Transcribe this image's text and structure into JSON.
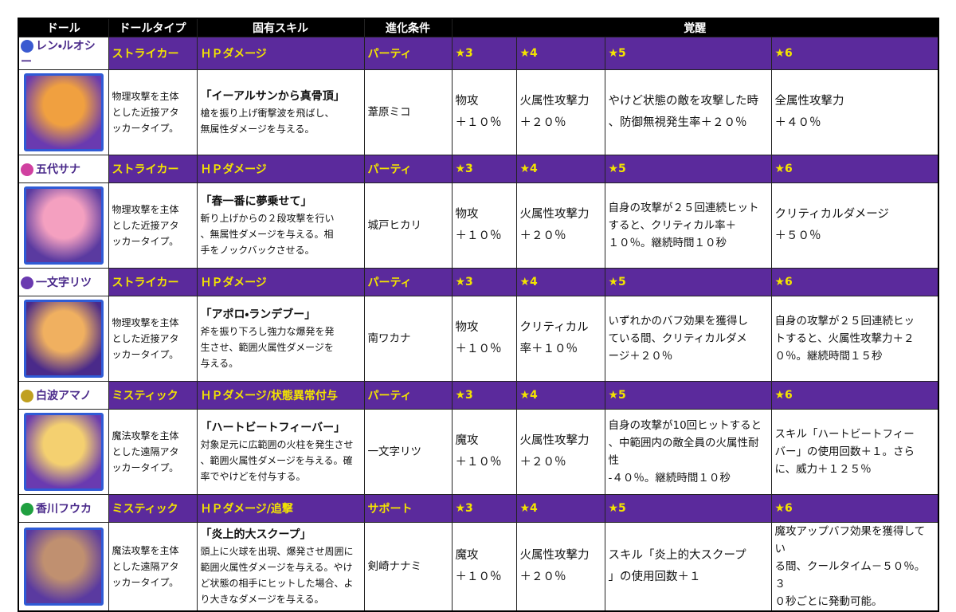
{
  "header": [
    "ドール",
    "ドールタイプ",
    "固有スキル",
    "進化条件",
    "覚醒"
  ],
  "dolls": [
    {
      "name": "レン・ルオシー",
      "type": "ストライカー",
      "damage": "ＨＰダメージ",
      "condition": "パーティ",
      "stars": [
        "★3",
        "★4",
        "★5",
        "★6"
      ],
      "description": "物理攻撃を主体\nとした近接アタ\nッカータイプ。",
      "skill_name": "「イーアルサンから真骨頂」",
      "skill_text": "槍を振り上げ衝撃波を飛ばし、\n無属性ダメージを与える。",
      "partner": "葦原ミコ",
      "awakening": [
        "物攻\n＋１０％",
        "火属性攻撃力\n＋２０％",
        "やけど状態の敵を攻撃した時\n、防御無視発生率＋２０％",
        "全属性攻撃力\n＋４０％"
      ]
    },
    {
      "name": "五代サナ",
      "type": "ストライカー",
      "damage": "ＨＰダメージ",
      "condition": "パーティ",
      "stars": [
        "★3",
        "★4",
        "★5",
        "★6"
      ],
      "description": "物理攻撃を主体\nとした近接アタ\nッカータイプ。",
      "skill_name": "「春一番に夢乗せて」",
      "skill_text": "斬り上げからの２段攻撃を行い\n、無属性ダメージを与える。相\n手をノックバックさせる。",
      "partner": "城戸ヒカリ",
      "awakening": [
        "物攻\n＋１０％",
        "火属性攻撃力\n＋２０％",
        "自身の攻撃が２５回連続ヒット\nすると、クリティカル率＋\n１０％。継続時間１０秒",
        "クリティカルダメージ\n＋５０％"
      ]
    },
    {
      "name": "一文字リツ",
      "type": "ストライカー",
      "damage": "ＨＰダメージ",
      "condition": "パーティ",
      "stars": [
        "★3",
        "★4",
        "★5",
        "★6"
      ],
      "description": "物理攻撃を主体\nとした近接アタ\nッカータイプ。",
      "skill_name": "「アポロ・ランデブー」",
      "skill_text": "斧を振り下ろし強力な爆発を発\n生させ、範囲火属性ダメージを\n与える。",
      "partner": "南ワカナ",
      "awakening": [
        "物攻\n＋１０％",
        "クリティカル\n率＋１０％",
        "いずれかのバフ効果を獲得し\nている間、クリティカルダメ\nージ＋２０％",
        "自身の攻撃が２５回連続ヒッ\nトすると、火属性攻撃力＋２\n０％。継続時間１５秒"
      ]
    },
    {
      "name": "白波アマノ",
      "type": "ミスティック",
      "damage": "ＨＰダメージ/状態異常付与",
      "condition": "パーティ",
      "stars": [
        "★3",
        "★4",
        "★5",
        "★6"
      ],
      "description": "魔法攻撃を主体\nとした遠隔アタ\nッカータイプ。",
      "skill_name": "「ハートビートフィーバー」",
      "skill_text": "対象足元に広範囲の火柱を発生させ\n、範囲火属性ダメージを与える。確\n率でやけどを付与する。",
      "partner": "一文字リツ",
      "awakening": [
        "魔攻\n＋１０％",
        "火属性攻撃力\n＋２０％",
        "自身の攻撃が10回ヒットすると\n、中範囲内の敵全員の火属性耐性\n-４０％。継続時間１０秒",
        "スキル「ハートビートフィー\nバー」の使用回数＋１。さら\nに、威力＋１２５％"
      ]
    },
    {
      "name": "香川フウカ",
      "type": "ミスティック",
      "damage": "ＨＰダメージ/追撃",
      "condition": "サポート",
      "stars": [
        "★3",
        "★4",
        "★5",
        "★6"
      ],
      "description": "魔法攻撃を主体\nとした遠隔アタ\nッカータイプ。",
      "skill_name": "「炎上的大スクープ」",
      "skill_text": "頭上に火球を出現、爆発させ周囲に\n範囲火属性ダメージを与える。やけ\nど状態の相手にヒットした場合、よ\nり大きなダメージを与える。",
      "partner": "剣崎ナナミ",
      "awakening": [
        "魔攻\n＋１０％",
        "火属性攻撃力\n＋２０％",
        "スキル「炎上的大スクープ\n」の使用回数＋１",
        "魔攻アップバフ効果を獲得してい\nる間、クールタイム－５０％。３\n０秒ごとに発動可能。"
      ]
    }
  ]
}
